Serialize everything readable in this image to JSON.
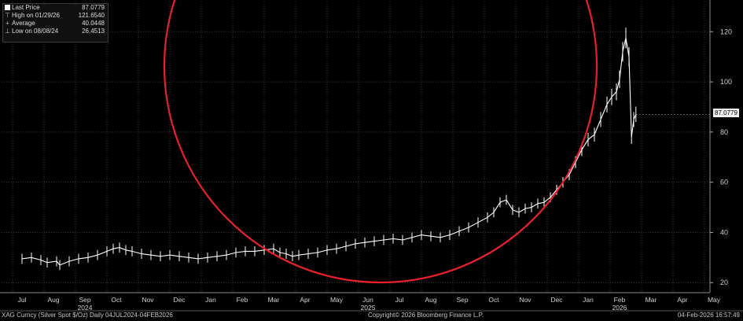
{
  "legend": {
    "last_price_label": "Last Price",
    "last_price_value": "87.0779",
    "high_label": "High on 01/29/26",
    "high_value": "121.6540",
    "avg_label": "Average",
    "avg_value": "40.0448",
    "low_label": "Low on 08/08/24",
    "low_value": "26.4513"
  },
  "last_price_tag": "87.0779",
  "footer": {
    "left": "XAG Curncy (Silver Spot $/Oz) Daily 04JUL2024-04FEB2026",
    "center": "Copyright© 2026 Bloomberg Finance L.P.",
    "right": "04-Feb-2026 16:57:49"
  },
  "chart_data": {
    "type": "line",
    "y_ticks": [
      20,
      40,
      60,
      80,
      100,
      120
    ],
    "ylim": [
      16,
      132
    ],
    "x_month_labels": [
      "Jul",
      "Aug",
      "Sep",
      "Oct",
      "Nov",
      "Dec",
      "Jan",
      "Feb",
      "Mar",
      "Apr",
      "May",
      "Jun",
      "Jul",
      "Aug",
      "Sep",
      "Oct",
      "Nov",
      "Dec",
      "Jan",
      "Feb",
      "Mar",
      "Apr",
      "May"
    ],
    "x_year_labels": [
      {
        "label": "2024",
        "month_index": 2
      },
      {
        "label": "2025",
        "month_index": 11
      },
      {
        "label": "2026",
        "month_index": 19
      }
    ],
    "grid": true,
    "axis_side": "right",
    "series": [
      {
        "name": "Last Price",
        "color": "#ffffff",
        "points": [
          [
            0,
            29.5
          ],
          [
            0.3,
            30.0
          ],
          [
            0.6,
            29.0
          ],
          [
            0.8,
            28.0
          ],
          [
            1.1,
            28.5
          ],
          [
            1.2,
            27.0
          ],
          [
            1.5,
            28.5
          ],
          [
            1.8,
            29.5
          ],
          [
            2.1,
            30.0
          ],
          [
            2.4,
            31.0
          ],
          [
            2.7,
            32.5
          ],
          [
            2.9,
            33.5
          ],
          [
            3.1,
            34.0
          ],
          [
            3.3,
            33.0
          ],
          [
            3.5,
            32.5
          ],
          [
            3.8,
            31.5
          ],
          [
            4.1,
            31.0
          ],
          [
            4.4,
            30.5
          ],
          [
            4.7,
            31.0
          ],
          [
            5.0,
            30.5
          ],
          [
            5.3,
            30.0
          ],
          [
            5.6,
            29.5
          ],
          [
            5.9,
            30.0
          ],
          [
            6.2,
            30.5
          ],
          [
            6.5,
            31.0
          ],
          [
            6.8,
            32.0
          ],
          [
            7.1,
            32.5
          ],
          [
            7.4,
            32.5
          ],
          [
            7.7,
            33.0
          ],
          [
            8.0,
            33.5
          ],
          [
            8.2,
            32.0
          ],
          [
            8.4,
            31.5
          ],
          [
            8.6,
            30.5
          ],
          [
            8.8,
            31.0
          ],
          [
            9.1,
            31.5
          ],
          [
            9.4,
            32.0
          ],
          [
            9.7,
            33.0
          ],
          [
            10.0,
            33.5
          ],
          [
            10.3,
            34.5
          ],
          [
            10.6,
            35.5
          ],
          [
            10.9,
            36.0
          ],
          [
            11.2,
            36.5
          ],
          [
            11.5,
            37.0
          ],
          [
            11.8,
            37.5
          ],
          [
            12.1,
            37.0
          ],
          [
            12.4,
            38.0
          ],
          [
            12.7,
            39.0
          ],
          [
            13.0,
            38.5
          ],
          [
            13.3,
            38.0
          ],
          [
            13.6,
            39.0
          ],
          [
            13.9,
            40.5
          ],
          [
            14.2,
            42.0
          ],
          [
            14.5,
            44.0
          ],
          [
            14.8,
            46.0
          ],
          [
            15.0,
            48.0
          ],
          [
            15.2,
            52.0
          ],
          [
            15.4,
            53.0
          ],
          [
            15.6,
            49.0
          ],
          [
            15.8,
            48.0
          ],
          [
            16.0,
            49.5
          ],
          [
            16.2,
            50.0
          ],
          [
            16.4,
            51.5
          ],
          [
            16.6,
            52.0
          ],
          [
            16.8,
            54.0
          ],
          [
            17.0,
            57.0
          ],
          [
            17.2,
            60.0
          ],
          [
            17.4,
            63.0
          ],
          [
            17.6,
            68.0
          ],
          [
            17.8,
            73.0
          ],
          [
            18.0,
            77.0
          ],
          [
            18.2,
            79.0
          ],
          [
            18.4,
            85.0
          ],
          [
            18.6,
            91.0
          ],
          [
            18.75,
            94.0
          ],
          [
            18.9,
            96.0
          ],
          [
            19.0,
            101.0
          ],
          [
            19.1,
            112.0
          ],
          [
            19.2,
            117.5
          ],
          [
            19.3,
            110.0
          ],
          [
            19.38,
            78.0
          ],
          [
            19.45,
            85.0
          ],
          [
            19.52,
            87.08
          ]
        ]
      }
    ],
    "high": {
      "date": "01/29/26",
      "value": 121.654
    },
    "low": {
      "date": "08/08/24",
      "value": 26.4513
    },
    "average": 40.0448,
    "last": 87.0779,
    "annotation": "red circle highlighting the parabolic rise"
  }
}
